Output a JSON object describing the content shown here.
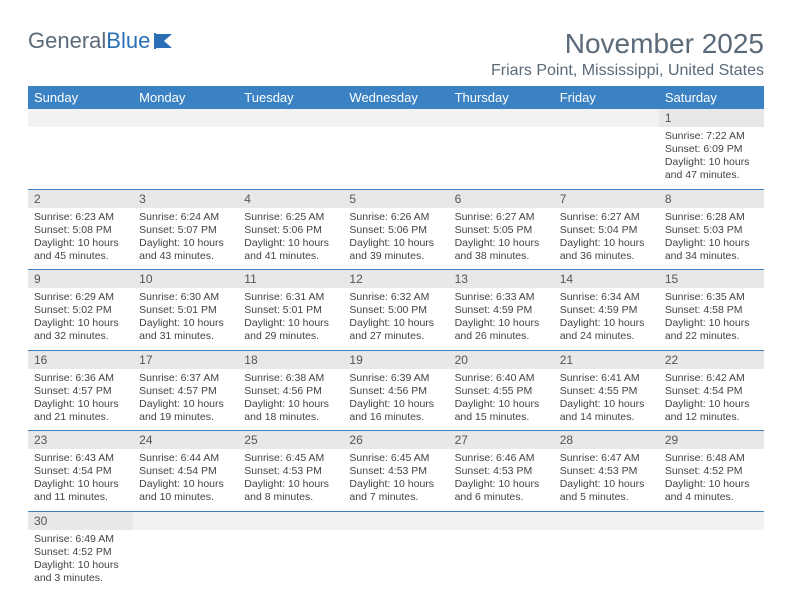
{
  "brand": {
    "part1": "General",
    "part2": "Blue"
  },
  "title": {
    "month": "November 2025",
    "location": "Friars Point, Mississippi, United States"
  },
  "colors": {
    "header_bg": "#3b82c4",
    "header_text": "#ffffff",
    "daynum_bg": "#e8e8e8",
    "grid_line": "#3b82c4",
    "title_color": "#5a6a78"
  },
  "weekdays": [
    "Sunday",
    "Monday",
    "Tuesday",
    "Wednesday",
    "Thursday",
    "Friday",
    "Saturday"
  ],
  "weeks": [
    [
      {
        "empty": true
      },
      {
        "empty": true
      },
      {
        "empty": true
      },
      {
        "empty": true
      },
      {
        "empty": true
      },
      {
        "empty": true
      },
      {
        "n": "1",
        "sr": "Sunrise: 7:22 AM",
        "ss": "Sunset: 6:09 PM",
        "d1": "Daylight: 10 hours",
        "d2": "and 47 minutes."
      }
    ],
    [
      {
        "n": "2",
        "sr": "Sunrise: 6:23 AM",
        "ss": "Sunset: 5:08 PM",
        "d1": "Daylight: 10 hours",
        "d2": "and 45 minutes."
      },
      {
        "n": "3",
        "sr": "Sunrise: 6:24 AM",
        "ss": "Sunset: 5:07 PM",
        "d1": "Daylight: 10 hours",
        "d2": "and 43 minutes."
      },
      {
        "n": "4",
        "sr": "Sunrise: 6:25 AM",
        "ss": "Sunset: 5:06 PM",
        "d1": "Daylight: 10 hours",
        "d2": "and 41 minutes."
      },
      {
        "n": "5",
        "sr": "Sunrise: 6:26 AM",
        "ss": "Sunset: 5:06 PM",
        "d1": "Daylight: 10 hours",
        "d2": "and 39 minutes."
      },
      {
        "n": "6",
        "sr": "Sunrise: 6:27 AM",
        "ss": "Sunset: 5:05 PM",
        "d1": "Daylight: 10 hours",
        "d2": "and 38 minutes."
      },
      {
        "n": "7",
        "sr": "Sunrise: 6:27 AM",
        "ss": "Sunset: 5:04 PM",
        "d1": "Daylight: 10 hours",
        "d2": "and 36 minutes."
      },
      {
        "n": "8",
        "sr": "Sunrise: 6:28 AM",
        "ss": "Sunset: 5:03 PM",
        "d1": "Daylight: 10 hours",
        "d2": "and 34 minutes."
      }
    ],
    [
      {
        "n": "9",
        "sr": "Sunrise: 6:29 AM",
        "ss": "Sunset: 5:02 PM",
        "d1": "Daylight: 10 hours",
        "d2": "and 32 minutes."
      },
      {
        "n": "10",
        "sr": "Sunrise: 6:30 AM",
        "ss": "Sunset: 5:01 PM",
        "d1": "Daylight: 10 hours",
        "d2": "and 31 minutes."
      },
      {
        "n": "11",
        "sr": "Sunrise: 6:31 AM",
        "ss": "Sunset: 5:01 PM",
        "d1": "Daylight: 10 hours",
        "d2": "and 29 minutes."
      },
      {
        "n": "12",
        "sr": "Sunrise: 6:32 AM",
        "ss": "Sunset: 5:00 PM",
        "d1": "Daylight: 10 hours",
        "d2": "and 27 minutes."
      },
      {
        "n": "13",
        "sr": "Sunrise: 6:33 AM",
        "ss": "Sunset: 4:59 PM",
        "d1": "Daylight: 10 hours",
        "d2": "and 26 minutes."
      },
      {
        "n": "14",
        "sr": "Sunrise: 6:34 AM",
        "ss": "Sunset: 4:59 PM",
        "d1": "Daylight: 10 hours",
        "d2": "and 24 minutes."
      },
      {
        "n": "15",
        "sr": "Sunrise: 6:35 AM",
        "ss": "Sunset: 4:58 PM",
        "d1": "Daylight: 10 hours",
        "d2": "and 22 minutes."
      }
    ],
    [
      {
        "n": "16",
        "sr": "Sunrise: 6:36 AM",
        "ss": "Sunset: 4:57 PM",
        "d1": "Daylight: 10 hours",
        "d2": "and 21 minutes."
      },
      {
        "n": "17",
        "sr": "Sunrise: 6:37 AM",
        "ss": "Sunset: 4:57 PM",
        "d1": "Daylight: 10 hours",
        "d2": "and 19 minutes."
      },
      {
        "n": "18",
        "sr": "Sunrise: 6:38 AM",
        "ss": "Sunset: 4:56 PM",
        "d1": "Daylight: 10 hours",
        "d2": "and 18 minutes."
      },
      {
        "n": "19",
        "sr": "Sunrise: 6:39 AM",
        "ss": "Sunset: 4:56 PM",
        "d1": "Daylight: 10 hours",
        "d2": "and 16 minutes."
      },
      {
        "n": "20",
        "sr": "Sunrise: 6:40 AM",
        "ss": "Sunset: 4:55 PM",
        "d1": "Daylight: 10 hours",
        "d2": "and 15 minutes."
      },
      {
        "n": "21",
        "sr": "Sunrise: 6:41 AM",
        "ss": "Sunset: 4:55 PM",
        "d1": "Daylight: 10 hours",
        "d2": "and 14 minutes."
      },
      {
        "n": "22",
        "sr": "Sunrise: 6:42 AM",
        "ss": "Sunset: 4:54 PM",
        "d1": "Daylight: 10 hours",
        "d2": "and 12 minutes."
      }
    ],
    [
      {
        "n": "23",
        "sr": "Sunrise: 6:43 AM",
        "ss": "Sunset: 4:54 PM",
        "d1": "Daylight: 10 hours",
        "d2": "and 11 minutes."
      },
      {
        "n": "24",
        "sr": "Sunrise: 6:44 AM",
        "ss": "Sunset: 4:54 PM",
        "d1": "Daylight: 10 hours",
        "d2": "and 10 minutes."
      },
      {
        "n": "25",
        "sr": "Sunrise: 6:45 AM",
        "ss": "Sunset: 4:53 PM",
        "d1": "Daylight: 10 hours",
        "d2": "and 8 minutes."
      },
      {
        "n": "26",
        "sr": "Sunrise: 6:45 AM",
        "ss": "Sunset: 4:53 PM",
        "d1": "Daylight: 10 hours",
        "d2": "and 7 minutes."
      },
      {
        "n": "27",
        "sr": "Sunrise: 6:46 AM",
        "ss": "Sunset: 4:53 PM",
        "d1": "Daylight: 10 hours",
        "d2": "and 6 minutes."
      },
      {
        "n": "28",
        "sr": "Sunrise: 6:47 AM",
        "ss": "Sunset: 4:53 PM",
        "d1": "Daylight: 10 hours",
        "d2": "and 5 minutes."
      },
      {
        "n": "29",
        "sr": "Sunrise: 6:48 AM",
        "ss": "Sunset: 4:52 PM",
        "d1": "Daylight: 10 hours",
        "d2": "and 4 minutes."
      }
    ],
    [
      {
        "n": "30",
        "sr": "Sunrise: 6:49 AM",
        "ss": "Sunset: 4:52 PM",
        "d1": "Daylight: 10 hours",
        "d2": "and 3 minutes."
      },
      {
        "empty": true
      },
      {
        "empty": true
      },
      {
        "empty": true
      },
      {
        "empty": true
      },
      {
        "empty": true
      },
      {
        "empty": true
      }
    ]
  ]
}
